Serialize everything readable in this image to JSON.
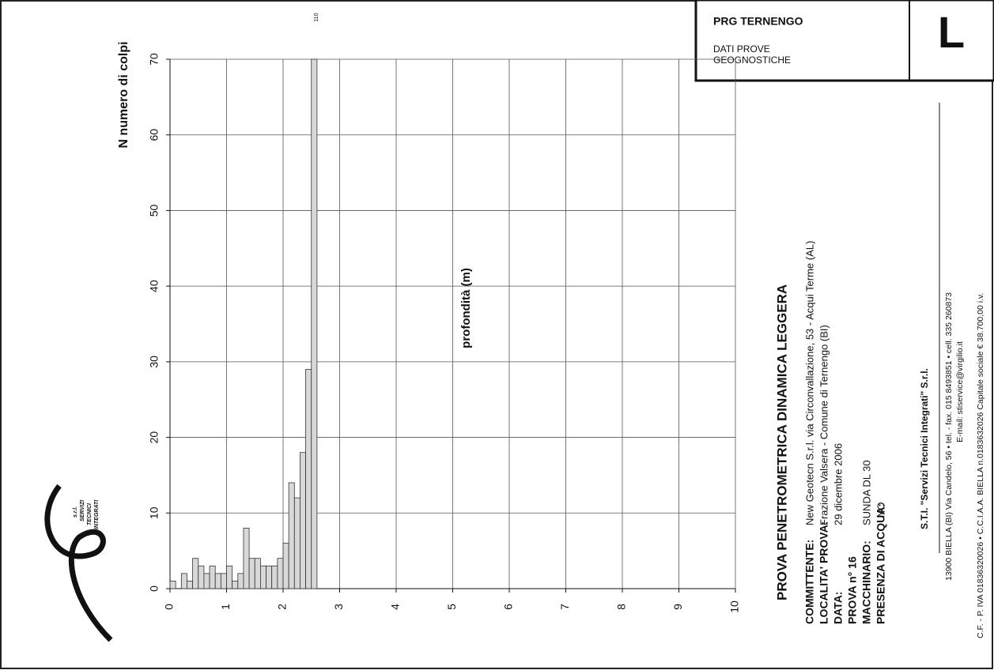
{
  "header": {
    "title": "PRG TERNENGO",
    "subtitle": [
      "DATI PROVE",
      "GEOGNOSTICHE"
    ],
    "code": "L"
  },
  "logo": [
    "s.r.l.",
    "SERVIZI",
    "TECNICI",
    "INTEGRATI"
  ],
  "corner_mark": "110",
  "chart_data": {
    "type": "histogram",
    "y_label": "N numero di colpi",
    "x_label": "profondità (m)",
    "bins": [
      0,
      0.1,
      0.2,
      0.3,
      0.4,
      0.5,
      0.6,
      0.7,
      0.8,
      0.9,
      1.0,
      1.1,
      1.2,
      1.3,
      1.4,
      1.5,
      1.6,
      1.7,
      1.8,
      1.9,
      2.0,
      2.1,
      2.2,
      2.3,
      2.4,
      2.5,
      2.6
    ],
    "values": [
      1,
      0,
      2,
      1,
      4,
      3,
      2,
      3,
      2,
      2,
      3,
      1,
      2,
      8,
      4,
      4,
      3,
      3,
      3,
      4,
      6,
      14,
      12,
      18,
      29,
      70
    ],
    "color": "#d8d8d8",
    "xlim": [
      0,
      10
    ],
    "xticks": [
      0,
      1,
      2,
      3,
      4,
      5,
      6,
      7,
      8,
      9,
      10
    ],
    "ylim": [
      0,
      70
    ],
    "yticks": [
      0,
      10,
      20,
      30,
      40,
      50,
      60,
      70
    ],
    "grid": true
  },
  "info": {
    "title": "PROVA PENETROMETRICA DINAMICA LEGGERA",
    "rows": [
      [
        "COMMITTENTE:",
        "New Geotecn S.r.l. via Circonvallazione, 53 - Acqui Terme (AL)"
      ],
      [
        "LOCALITA' PROVA:",
        "Frazione Valsera - Comune di Ternengo (BI)"
      ],
      [
        "DATA:",
        "29 dicembre 2006"
      ],
      [
        "PROVA n° 16",
        ""
      ],
      [
        "MACCHINARIO:",
        "SUNDA DL 30"
      ],
      [
        "PRESENZA DI ACQUA:",
        "NO"
      ]
    ]
  },
  "footer": {
    "company": "S.T.I. \"Servizi Tecnici Integrati\" S.r.l.",
    "lines": [
      "13900 BIELLA (BI) Via Candelo, 56 • tel. - fax. 015 8493851 • cell. 335 260873",
      "E-mail: stiservice@virgilio.it",
      "C.F. - P. IVA 01836320026 • C.C.I.A.A. BIELLA n.0183632026 Capitale sociale € 38.700,00 i.v."
    ]
  }
}
